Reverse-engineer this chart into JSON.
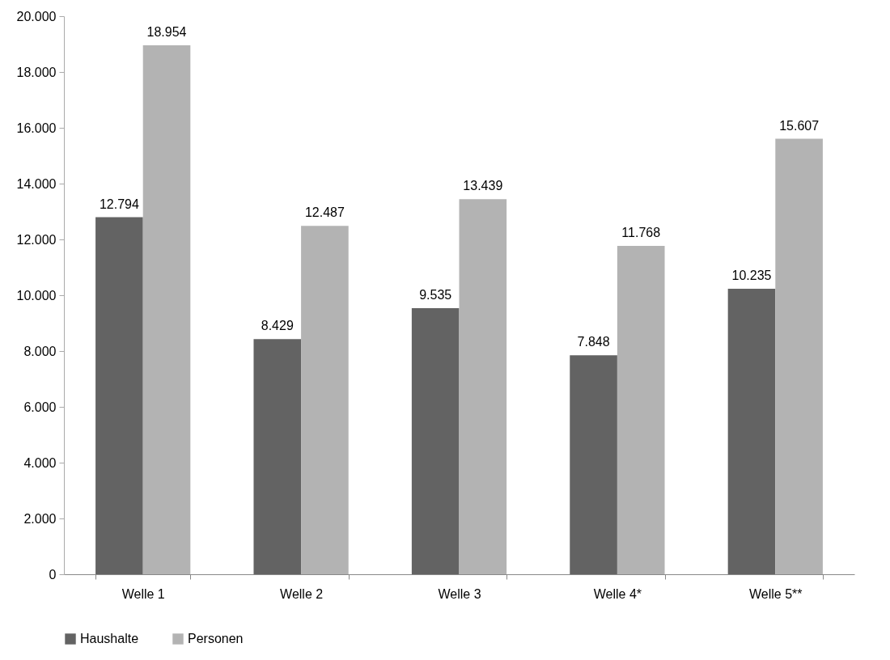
{
  "chart_data": {
    "type": "bar",
    "categories": [
      "Welle 1",
      "Welle 2",
      "Welle 3",
      "Welle 4*",
      "Welle 5**"
    ],
    "series": [
      {
        "name": "Haushalte",
        "color": "#636363",
        "values": [
          12794,
          8429,
          9535,
          7848,
          10235
        ],
        "value_labels": [
          "12.794",
          "8.429",
          "9.535",
          "7.848",
          "10.235"
        ]
      },
      {
        "name": "Personen",
        "color": "#b3b3b3",
        "values": [
          18954,
          12487,
          13439,
          11768,
          15607
        ],
        "value_labels": [
          "18.954",
          "12.487",
          "13.439",
          "11.768",
          "15.607"
        ]
      }
    ],
    "ylim": [
      0,
      20000
    ],
    "yticks": [
      0,
      {
        "value": 2000,
        "label": "2.000"
      },
      {
        "value": 4000,
        "label": "4.000"
      },
      {
        "value": 6000,
        "label": "6.000"
      },
      {
        "value": 8000,
        "label": "8.000"
      },
      {
        "value": 10000,
        "label": "10.000"
      },
      {
        "value": 12000,
        "label": "12.000"
      },
      {
        "value": 14000,
        "label": "14.000"
      },
      {
        "value": 16000,
        "label": "16.000"
      },
      {
        "value": 18000,
        "label": "18.000"
      },
      {
        "value": 20000,
        "label": "20.000"
      }
    ],
    "grid": false,
    "legend": "bottom"
  }
}
